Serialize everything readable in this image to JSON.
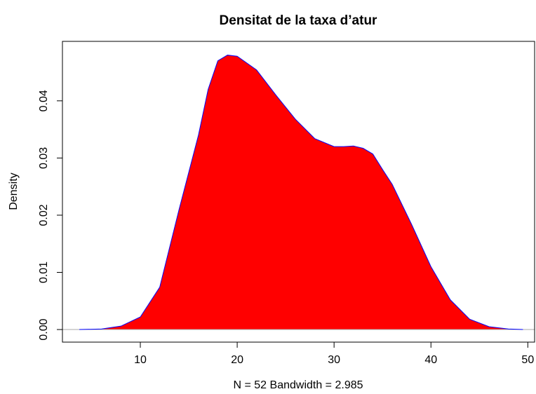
{
  "chart_data": {
    "type": "area",
    "title": "Densitat de la taxa d’atur",
    "x_label": "N = 52   Bandwidth = 2.985",
    "y_label": "Density",
    "x": [
      3.7,
      6,
      8,
      10,
      12,
      14,
      16,
      17,
      18,
      19,
      20,
      22,
      24,
      26,
      28,
      30,
      31,
      32,
      33,
      34,
      35,
      36,
      38,
      40,
      42,
      44,
      46,
      48,
      49.5
    ],
    "values": [
      0,
      0.0001,
      0.0006,
      0.0022,
      0.0074,
      0.021,
      0.034,
      0.042,
      0.047,
      0.048,
      0.0478,
      0.0454,
      0.041,
      0.0368,
      0.0334,
      0.032,
      0.032,
      0.0321,
      0.0317,
      0.0307,
      0.028,
      0.0254,
      0.0184,
      0.011,
      0.0052,
      0.0018,
      0.0005,
      0.0001,
      0
    ],
    "fill_color": "#ff0000",
    "line_color": "#0000ff",
    "xlim": [
      1.96,
      50.7
    ],
    "ylim": [
      -0.0022,
      0.0504
    ],
    "xticks": [
      10,
      20,
      30,
      40,
      50
    ],
    "yticks": [
      {
        "value": 0,
        "label": "0.00"
      },
      {
        "value": 0.01,
        "label": "0.01"
      },
      {
        "value": 0.02,
        "label": "0.02"
      },
      {
        "value": 0.03,
        "label": "0.03"
      },
      {
        "value": 0.04,
        "label": "0.04"
      }
    ]
  }
}
